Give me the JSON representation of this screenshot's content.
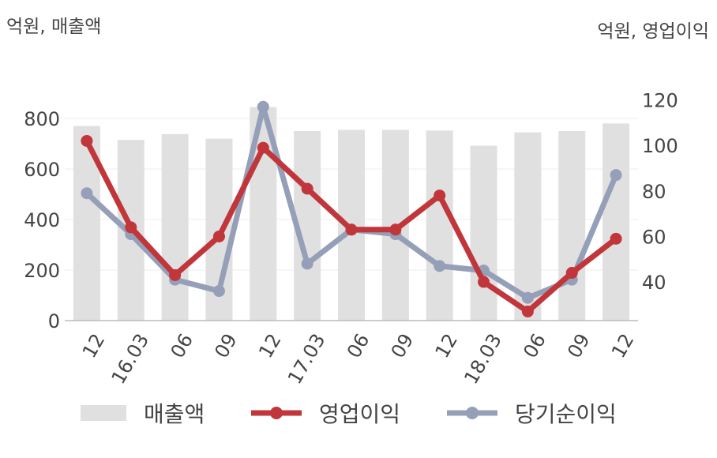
{
  "units": {
    "left": "억원, 매출액",
    "right": "억원, 영업이익"
  },
  "legend": {
    "revenue": "매출액",
    "operating": "영업이익",
    "net": "당기순이익"
  },
  "colors": {
    "revenue": "#e0e0e0",
    "operating": "#c0363a",
    "net": "#95a0b8",
    "axis": "#bbbbbb",
    "grid": "#eeeeee",
    "text": "#444444"
  },
  "chart_data": {
    "type": "bar+line",
    "categories": [
      "12",
      "16.03",
      "06",
      "09",
      "12",
      "17.03",
      "06",
      "09",
      "12",
      "18.03",
      "06",
      "09",
      "12"
    ],
    "left_axis": {
      "unit": "억원, 매출액",
      "ylim": [
        0,
        900
      ],
      "ticks": [
        0,
        200,
        400,
        600,
        800
      ]
    },
    "right_axis": {
      "unit": "억원, 영업이익",
      "ylim": [
        23,
        123
      ],
      "ticks": [
        40,
        60,
        80,
        100,
        120
      ]
    },
    "series": [
      {
        "name": "매출액",
        "type": "bar",
        "axis": "left",
        "values": [
          770,
          715,
          738,
          720,
          845,
          750,
          755,
          755,
          752,
          692,
          745,
          750,
          780
        ]
      },
      {
        "name": "영업이익",
        "type": "line",
        "axis": "right",
        "values": [
          102,
          64,
          43,
          60,
          99,
          81,
          63,
          63,
          78,
          40,
          27,
          44,
          59
        ]
      },
      {
        "name": "당기순이익",
        "type": "line",
        "axis": "right",
        "values": [
          79,
          61,
          41,
          36,
          117,
          48,
          63,
          61,
          47,
          45,
          33,
          41,
          87
        ]
      }
    ],
    "grid": true,
    "legend_position": "bottom"
  }
}
